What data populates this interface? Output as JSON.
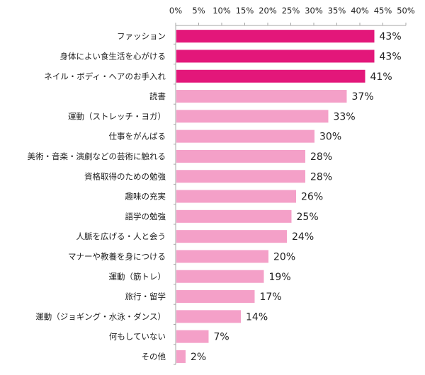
{
  "chart_data": {
    "type": "bar",
    "orientation": "horizontal",
    "categories": [
      "ファッション",
      "身体によい食生活を心がける",
      "ネイル・ボディ・ヘアのお手入れ",
      "読書",
      "運動（ストレッチ・ヨガ）",
      "仕事をがんばる",
      "美術・音楽・演劇などの芸術に触れる",
      "資格取得のための勉強",
      "趣味の充実",
      "語学の勉強",
      "人脈を広げる・人と会う",
      "マナーや教養を身につける",
      "運動（筋トレ）",
      "旅行・留学",
      "運動（ジョギング・水泳・ダンス）",
      "何もしていない",
      "その他"
    ],
    "values": [
      43,
      43,
      41,
      37,
      33,
      30,
      28,
      28,
      26,
      25,
      24,
      20,
      19,
      17,
      14,
      7,
      2
    ],
    "data_labels": [
      "43%",
      "43%",
      "41%",
      "37%",
      "33%",
      "30%",
      "28%",
      "28%",
      "26%",
      "25%",
      "24%",
      "20%",
      "19%",
      "17%",
      "14%",
      "7%",
      "2%"
    ],
    "highlight_count": 3,
    "xlim": [
      0,
      50
    ],
    "tick_labels": [
      "0%",
      "5%",
      "10%",
      "15%",
      "20%",
      "25%",
      "30%",
      "35%",
      "40%",
      "45%",
      "50%"
    ],
    "axis_position": "top",
    "grid": false,
    "colors": {
      "highlight": "#e3177a",
      "normal": "#f4a0c8",
      "axis": "#a6a6a6"
    }
  }
}
